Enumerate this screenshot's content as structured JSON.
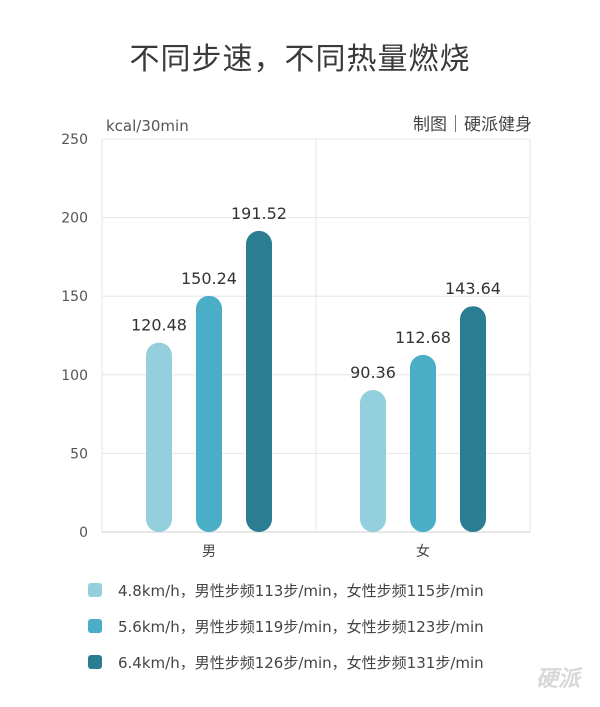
{
  "title": "不同步速，不同热量燃烧",
  "credit": "制图｜硬派健身",
  "watermark": "硬派",
  "chart_data": {
    "type": "bar",
    "ylabel": "kcal/30min",
    "xlabel": "",
    "ylim": [
      0,
      250
    ],
    "yticks": [
      0,
      50,
      100,
      150,
      200,
      250
    ],
    "categories": [
      "男",
      "女"
    ],
    "series": [
      {
        "name": "4.8km/h，男性步频113步/min，女性步频115步/min",
        "color": "#93cfdc",
        "values": [
          120.48,
          90.36
        ]
      },
      {
        "name": "5.6km/h，男性步频119步/min，女性步频123步/min",
        "color": "#4aaec6",
        "values": [
          150.24,
          112.68
        ]
      },
      {
        "name": "6.4km/h，男性步频126步/min，女性步频131步/min",
        "color": "#2b7d91",
        "values": [
          191.52,
          143.64
        ]
      }
    ],
    "value_labels": true,
    "grid": true,
    "legend_position": "bottom"
  }
}
